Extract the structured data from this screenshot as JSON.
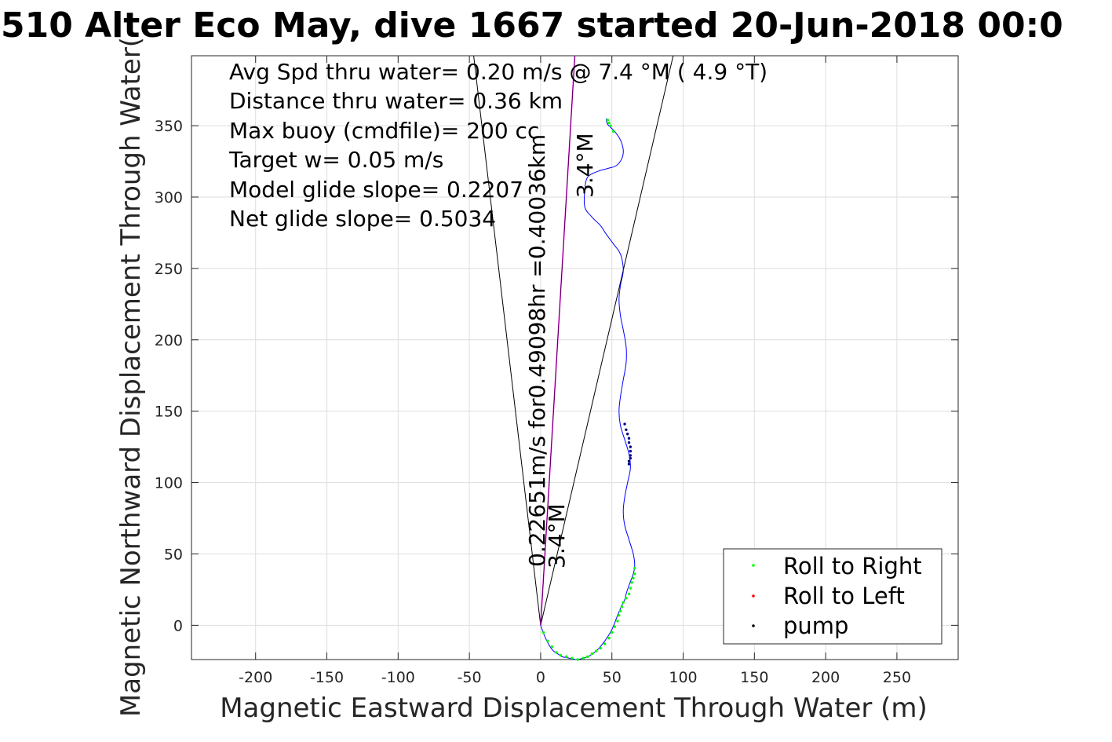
{
  "chart_data": {
    "type": "line",
    "title": "510 Alter Eco May, dive 1667 started 20-Jun-2018 00:0",
    "xlabel": "Magnetic Eastward Displacement Through Water (m)",
    "ylabel": "Magnetic Northward Displacement Through Water(",
    "xlim": [
      -245,
      293
    ],
    "ylim": [
      -24,
      399
    ],
    "xticks": [
      -200,
      -150,
      -100,
      -50,
      0,
      50,
      100,
      150,
      200,
      250
    ],
    "yticks": [
      0,
      50,
      100,
      150,
      200,
      250,
      300,
      350
    ],
    "grid": true,
    "colors": {
      "track": "#0000ff",
      "roll_right": "#00ff00",
      "roll_left": "#ff0000",
      "pump": "#000080",
      "mean_heading": "#ff00ff",
      "cone": "#000000"
    },
    "annotations": [
      "Avg Spd thru water=  0.20 m/s @   7.4 °M (  4.9 °T)",
      "Distance thru water=  0.36 km",
      "Max buoy (cmdfile)= 200 cc",
      "Target w= 0.05 m/s",
      "Model glide slope= 0.2207",
      "Net glide slope= 0.5034"
    ],
    "vector_labels": {
      "main": "0.22651m/s for0.49098hr =0.40036km",
      "heading_start": "3.4°M",
      "heading_end": "3.4°M"
    },
    "track": {
      "x": [
        0,
        3,
        6,
        9,
        12,
        15,
        20,
        25,
        30,
        35,
        40,
        45,
        50,
        54,
        57,
        59,
        60,
        62,
        65,
        66,
        65,
        62,
        59,
        58,
        59,
        61,
        63,
        62,
        59,
        56,
        55,
        56,
        58,
        60,
        60,
        58,
        56,
        55,
        56,
        58,
        57,
        55,
        52,
        46,
        42,
        36,
        31,
        31,
        33,
        40,
        47,
        53,
        57,
        58,
        56,
        52,
        47,
        46
      ],
      "y": [
        0,
        -8,
        -14,
        -18,
        -20,
        -22,
        -23,
        -24,
        -23,
        -21,
        -17,
        -11,
        -3,
        7,
        14,
        18,
        22,
        28,
        36,
        42,
        50,
        60,
        70,
        80,
        90,
        100,
        110,
        120,
        130,
        140,
        150,
        160,
        172,
        184,
        195,
        207,
        217,
        228,
        238,
        248,
        257,
        262,
        266,
        274,
        280,
        286,
        293,
        305,
        314,
        318,
        320,
        322,
        327,
        333,
        340,
        346,
        351,
        355
      ]
    },
    "roll_right": {
      "x": [
        2,
        5,
        8,
        11,
        14,
        18,
        22,
        26,
        30,
        33,
        36,
        39,
        42,
        45,
        48,
        50,
        52,
        54,
        55,
        56,
        57,
        58,
        60,
        62,
        63,
        64,
        65,
        66,
        66,
        47,
        48,
        49,
        51
      ],
      "y": [
        -5,
        -11,
        -15,
        -19,
        -21,
        -22,
        -23,
        -24,
        -23,
        -22,
        -20,
        -18,
        -16,
        -13,
        -9,
        -5,
        -1,
        3,
        7,
        10,
        13,
        16,
        19,
        22,
        26,
        30,
        33,
        36,
        40,
        354,
        352,
        350,
        346
      ]
    },
    "roll_left": {
      "x": [],
      "y": []
    },
    "pump": {
      "x": [
        59,
        60,
        61,
        62,
        62,
        63,
        63,
        63,
        63,
        62,
        62
      ],
      "y": [
        141,
        137,
        134,
        131,
        128,
        125,
        122,
        119,
        117,
        115,
        113
      ]
    },
    "mean_heading_line": {
      "x": [
        0,
        24
      ],
      "y": [
        0,
        399
      ]
    },
    "cone_lines": [
      {
        "x": [
          0,
          -47
        ],
        "y": [
          0,
          399
        ]
      },
      {
        "x": [
          0,
          93
        ],
        "y": [
          0,
          399
        ]
      }
    ],
    "legend": {
      "location": "bottom-right",
      "entries": [
        "Roll to Right",
        "Roll to Left",
        "pump"
      ]
    }
  }
}
